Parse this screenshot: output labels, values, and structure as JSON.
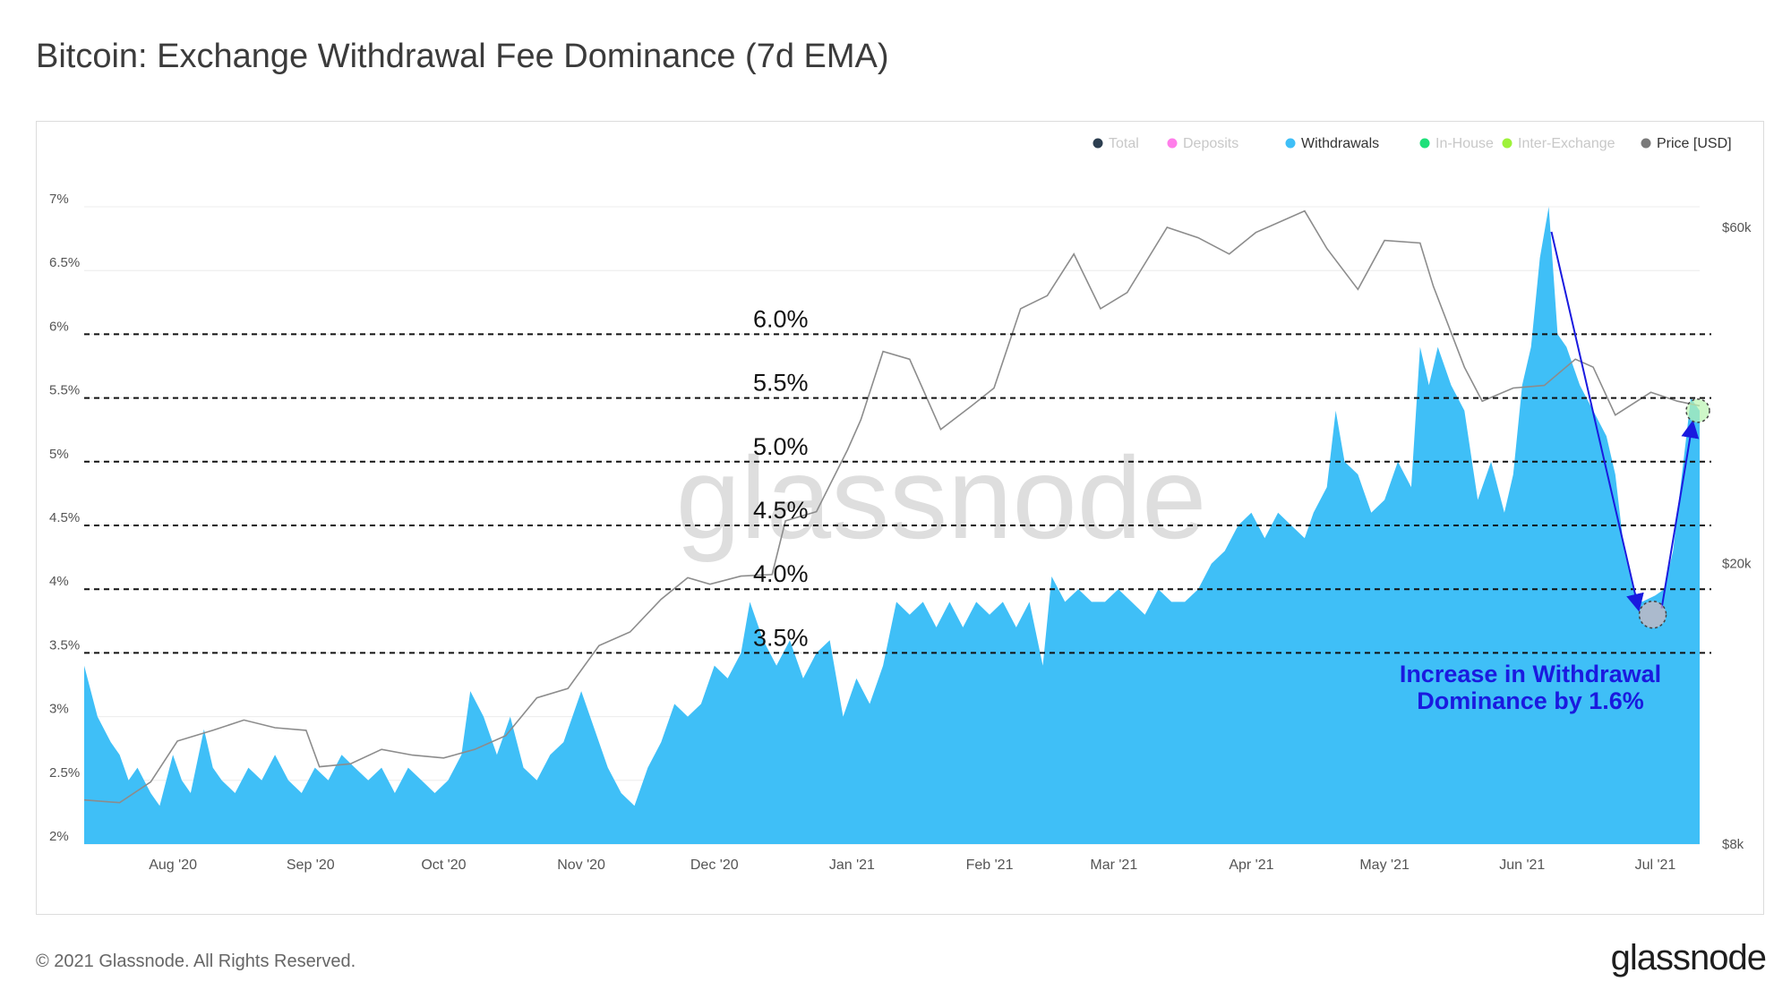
{
  "title": "Bitcoin: Exchange Withdrawal Fee Dominance (7d EMA)",
  "footer": "© 2021 Glassnode. All Rights Reserved.",
  "brand": "glassnode",
  "watermark": "glassnode",
  "colors": {
    "withdrawals": "#3fbff7",
    "price": "#8c8c8c",
    "total": "#2c3e50",
    "deposits": "#ff7eea",
    "inhouse": "#1fe07a",
    "interexchange": "#9ef23a",
    "annotation": "#1a1adf",
    "guide": "#111111"
  },
  "legend": [
    {
      "label": "Total",
      "color": "#2c3e50",
      "active": false
    },
    {
      "label": "Deposits",
      "color": "#ff7eea",
      "active": false
    },
    {
      "label": "Withdrawals",
      "color": "#3fbff7",
      "active": true
    },
    {
      "label": "In-House",
      "color": "#1fe07a",
      "active": false
    },
    {
      "label": "Inter-Exchange",
      "color": "#9ef23a",
      "active": false
    },
    {
      "label": "Price [USD]",
      "color": "#7a7a7a",
      "active": true
    }
  ],
  "chart_data": {
    "type": "area",
    "title": "Bitcoin: Exchange Withdrawal Fee Dominance (7d EMA)",
    "legend_position": "top-right",
    "grid": true,
    "x_ticks": [
      "Aug '20",
      "Sep '20",
      "Oct '20",
      "Nov '20",
      "Dec '20",
      "Jan '21",
      "Feb '21",
      "Mar '21",
      "Apr '21",
      "May '21",
      "Jun '21",
      "Jul '21"
    ],
    "x_tick_dates": [
      "2020-08-01",
      "2020-09-01",
      "2020-10-01",
      "2020-11-01",
      "2020-12-01",
      "2021-01-01",
      "2021-02-01",
      "2021-03-01",
      "2021-04-01",
      "2021-05-01",
      "2021-06-01",
      "2021-07-01"
    ],
    "xlim": [
      "2020-07-12",
      "2021-07-11"
    ],
    "y_left": {
      "ticks": [
        "2%",
        "2.5%",
        "3%",
        "3.5%",
        "4%",
        "4.5%",
        "5%",
        "5.5%",
        "6%",
        "6.5%",
        "7%"
      ],
      "tick_values": [
        2,
        2.5,
        3,
        3.5,
        4,
        4.5,
        5,
        5.5,
        6,
        6.5,
        7
      ],
      "ylim": [
        2,
        7.0
      ]
    },
    "y_right": {
      "ticks": [
        "$8k",
        "$20k",
        "$60k"
      ],
      "tick_values": [
        8000,
        20000,
        60000
      ],
      "scale": "log"
    },
    "series": [
      {
        "name": "Withdrawals",
        "axis": "left",
        "points": [
          [
            "2020-07-12",
            3.4
          ],
          [
            "2020-07-15",
            3.0
          ],
          [
            "2020-07-18",
            2.8
          ],
          [
            "2020-07-20",
            2.7
          ],
          [
            "2020-07-22",
            2.5
          ],
          [
            "2020-07-24",
            2.6
          ],
          [
            "2020-07-27",
            2.4
          ],
          [
            "2020-07-29",
            2.3
          ],
          [
            "2020-08-01",
            2.7
          ],
          [
            "2020-08-03",
            2.5
          ],
          [
            "2020-08-05",
            2.4
          ],
          [
            "2020-08-08",
            2.9
          ],
          [
            "2020-08-10",
            2.6
          ],
          [
            "2020-08-12",
            2.5
          ],
          [
            "2020-08-15",
            2.4
          ],
          [
            "2020-08-18",
            2.6
          ],
          [
            "2020-08-21",
            2.5
          ],
          [
            "2020-08-24",
            2.7
          ],
          [
            "2020-08-27",
            2.5
          ],
          [
            "2020-08-30",
            2.4
          ],
          [
            "2020-09-02",
            2.6
          ],
          [
            "2020-09-05",
            2.5
          ],
          [
            "2020-09-08",
            2.7
          ],
          [
            "2020-09-11",
            2.6
          ],
          [
            "2020-09-14",
            2.5
          ],
          [
            "2020-09-17",
            2.6
          ],
          [
            "2020-09-20",
            2.4
          ],
          [
            "2020-09-23",
            2.6
          ],
          [
            "2020-09-26",
            2.5
          ],
          [
            "2020-09-29",
            2.4
          ],
          [
            "2020-10-02",
            2.5
          ],
          [
            "2020-10-05",
            2.7
          ],
          [
            "2020-10-07",
            3.2
          ],
          [
            "2020-10-10",
            3.0
          ],
          [
            "2020-10-13",
            2.7
          ],
          [
            "2020-10-16",
            3.0
          ],
          [
            "2020-10-19",
            2.6
          ],
          [
            "2020-10-22",
            2.5
          ],
          [
            "2020-10-25",
            2.7
          ],
          [
            "2020-10-28",
            2.8
          ],
          [
            "2020-11-01",
            3.2
          ],
          [
            "2020-11-04",
            2.9
          ],
          [
            "2020-11-07",
            2.6
          ],
          [
            "2020-11-10",
            2.4
          ],
          [
            "2020-11-13",
            2.3
          ],
          [
            "2020-11-16",
            2.6
          ],
          [
            "2020-11-19",
            2.8
          ],
          [
            "2020-11-22",
            3.1
          ],
          [
            "2020-11-25",
            3.0
          ],
          [
            "2020-11-28",
            3.1
          ],
          [
            "2020-12-01",
            3.4
          ],
          [
            "2020-12-04",
            3.3
          ],
          [
            "2020-12-07",
            3.5
          ],
          [
            "2020-12-09",
            3.9
          ],
          [
            "2020-12-12",
            3.6
          ],
          [
            "2020-12-15",
            3.4
          ],
          [
            "2020-12-18",
            3.6
          ],
          [
            "2020-12-21",
            3.3
          ],
          [
            "2020-12-24",
            3.5
          ],
          [
            "2020-12-27",
            3.6
          ],
          [
            "2020-12-30",
            3.0
          ],
          [
            "2021-01-02",
            3.3
          ],
          [
            "2021-01-05",
            3.1
          ],
          [
            "2021-01-08",
            3.4
          ],
          [
            "2021-01-11",
            3.9
          ],
          [
            "2021-01-14",
            3.8
          ],
          [
            "2021-01-17",
            3.9
          ],
          [
            "2021-01-20",
            3.7
          ],
          [
            "2021-01-23",
            3.9
          ],
          [
            "2021-01-26",
            3.7
          ],
          [
            "2021-01-29",
            3.9
          ],
          [
            "2021-02-01",
            3.8
          ],
          [
            "2021-02-04",
            3.9
          ],
          [
            "2021-02-07",
            3.7
          ],
          [
            "2021-02-10",
            3.9
          ],
          [
            "2021-02-13",
            3.4
          ],
          [
            "2021-02-15",
            4.1
          ],
          [
            "2021-02-18",
            3.9
          ],
          [
            "2021-02-21",
            4.0
          ],
          [
            "2021-02-24",
            3.9
          ],
          [
            "2021-02-27",
            3.9
          ],
          [
            "2021-03-02",
            4.0
          ],
          [
            "2021-03-05",
            3.9
          ],
          [
            "2021-03-08",
            3.8
          ],
          [
            "2021-03-11",
            4.0
          ],
          [
            "2021-03-14",
            3.9
          ],
          [
            "2021-03-17",
            3.9
          ],
          [
            "2021-03-20",
            4.0
          ],
          [
            "2021-03-23",
            4.2
          ],
          [
            "2021-03-26",
            4.3
          ],
          [
            "2021-03-29",
            4.5
          ],
          [
            "2021-04-01",
            4.6
          ],
          [
            "2021-04-04",
            4.4
          ],
          [
            "2021-04-07",
            4.6
          ],
          [
            "2021-04-10",
            4.5
          ],
          [
            "2021-04-13",
            4.4
          ],
          [
            "2021-04-15",
            4.6
          ],
          [
            "2021-04-18",
            4.8
          ],
          [
            "2021-04-20",
            5.4
          ],
          [
            "2021-04-22",
            5.0
          ],
          [
            "2021-04-25",
            4.9
          ],
          [
            "2021-04-28",
            4.6
          ],
          [
            "2021-05-01",
            4.7
          ],
          [
            "2021-05-04",
            5.0
          ],
          [
            "2021-05-07",
            4.8
          ],
          [
            "2021-05-09",
            5.9
          ],
          [
            "2021-05-11",
            5.6
          ],
          [
            "2021-05-13",
            5.9
          ],
          [
            "2021-05-16",
            5.6
          ],
          [
            "2021-05-19",
            5.4
          ],
          [
            "2021-05-22",
            4.7
          ],
          [
            "2021-05-25",
            5.0
          ],
          [
            "2021-05-28",
            4.6
          ],
          [
            "2021-05-30",
            4.9
          ],
          [
            "2021-06-01",
            5.6
          ],
          [
            "2021-06-03",
            5.9
          ],
          [
            "2021-06-05",
            6.6
          ],
          [
            "2021-06-07",
            7.0
          ],
          [
            "2021-06-09",
            6.0
          ],
          [
            "2021-06-11",
            5.9
          ],
          [
            "2021-06-14",
            5.6
          ],
          [
            "2021-06-17",
            5.4
          ],
          [
            "2021-06-20",
            5.2
          ],
          [
            "2021-06-22",
            4.9
          ],
          [
            "2021-06-24",
            4.3
          ],
          [
            "2021-06-26",
            4.0
          ],
          [
            "2021-06-28",
            3.9
          ],
          [
            "2021-07-01",
            3.95
          ],
          [
            "2021-07-03",
            4.0
          ],
          [
            "2021-07-05",
            4.3
          ],
          [
            "2021-07-07",
            4.9
          ],
          [
            "2021-07-09",
            5.5
          ],
          [
            "2021-07-11",
            5.4
          ]
        ]
      },
      {
        "name": "Price [USD]",
        "axis": "right",
        "points": [
          [
            "2020-07-12",
            9240
          ],
          [
            "2020-07-20",
            9160
          ],
          [
            "2020-07-27",
            9800
          ],
          [
            "2020-08-02",
            11200
          ],
          [
            "2020-08-10",
            11600
          ],
          [
            "2020-08-17",
            12000
          ],
          [
            "2020-08-24",
            11700
          ],
          [
            "2020-08-31",
            11600
          ],
          [
            "2020-09-03",
            10300
          ],
          [
            "2020-09-10",
            10400
          ],
          [
            "2020-09-17",
            10900
          ],
          [
            "2020-09-24",
            10700
          ],
          [
            "2020-10-01",
            10600
          ],
          [
            "2020-10-08",
            10900
          ],
          [
            "2020-10-15",
            11400
          ],
          [
            "2020-10-22",
            12900
          ],
          [
            "2020-10-29",
            13300
          ],
          [
            "2020-11-05",
            15300
          ],
          [
            "2020-11-12",
            16000
          ],
          [
            "2020-11-19",
            17800
          ],
          [
            "2020-11-25",
            19100
          ],
          [
            "2020-11-30",
            18700
          ],
          [
            "2020-12-07",
            19200
          ],
          [
            "2020-12-14",
            19300
          ],
          [
            "2020-12-17",
            23000
          ],
          [
            "2020-12-24",
            23700
          ],
          [
            "2020-12-31",
            29000
          ],
          [
            "2021-01-03",
            32000
          ],
          [
            "2021-01-08",
            40000
          ],
          [
            "2021-01-14",
            39000
          ],
          [
            "2021-01-21",
            31000
          ],
          [
            "2021-01-28",
            33500
          ],
          [
            "2021-02-02",
            35500
          ],
          [
            "2021-02-08",
            46000
          ],
          [
            "2021-02-14",
            48000
          ],
          [
            "2021-02-20",
            55000
          ],
          [
            "2021-02-26",
            46000
          ],
          [
            "2021-03-04",
            48500
          ],
          [
            "2021-03-13",
            60000
          ],
          [
            "2021-03-20",
            58000
          ],
          [
            "2021-03-27",
            55000
          ],
          [
            "2021-04-02",
            59000
          ],
          [
            "2021-04-13",
            63300
          ],
          [
            "2021-04-18",
            56000
          ],
          [
            "2021-04-25",
            49000
          ],
          [
            "2021-05-01",
            57500
          ],
          [
            "2021-05-09",
            57000
          ],
          [
            "2021-05-12",
            49500
          ],
          [
            "2021-05-19",
            38000
          ],
          [
            "2021-05-23",
            34000
          ],
          [
            "2021-05-30",
            35500
          ],
          [
            "2021-06-06",
            35800
          ],
          [
            "2021-06-13",
            39000
          ],
          [
            "2021-06-17",
            38000
          ],
          [
            "2021-06-22",
            32500
          ],
          [
            "2021-06-30",
            35000
          ],
          [
            "2021-07-06",
            34000
          ],
          [
            "2021-07-11",
            33500
          ]
        ]
      }
    ]
  },
  "annotations": {
    "guides": [
      {
        "label": "6.0%",
        "value": 6.0
      },
      {
        "label": "5.5%",
        "value": 5.5
      },
      {
        "label": "5.0%",
        "value": 5.0
      },
      {
        "label": "4.5%",
        "value": 4.5
      },
      {
        "label": "4.0%",
        "value": 4.0
      },
      {
        "label": "3.5%",
        "value": 3.5
      }
    ],
    "callout_line1": "Increase in Withdrawal",
    "callout_line2": "Dominance by 1.6%"
  }
}
